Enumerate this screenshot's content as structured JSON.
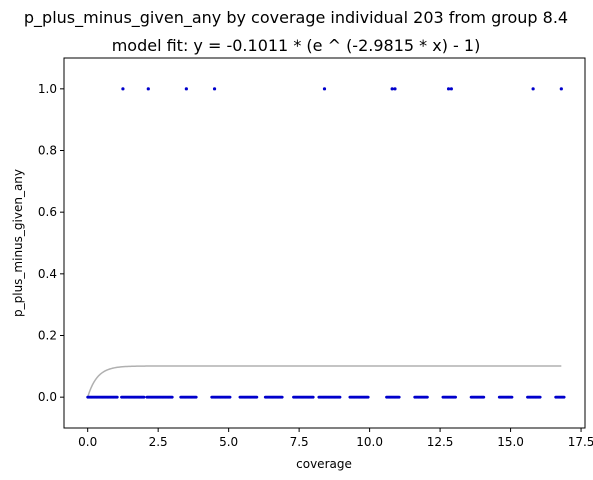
{
  "chart_data": {
    "type": "scatter",
    "title": "p_plus_minus_given_any by coverage individual 203 from group 8.4",
    "subtitle": "model fit: y = -0.1011 * (e ^ (-2.9815 * x) - 1)",
    "xlabel": "coverage",
    "ylabel": "p_plus_minus_given_any",
    "xlim": [
      -0.84,
      17.64
    ],
    "ylim": [
      -0.1,
      1.1
    ],
    "xticks": [
      0.0,
      2.5,
      5.0,
      7.5,
      10.0,
      12.5,
      15.0,
      17.5
    ],
    "xtick_labels": [
      "0.0",
      "2.5",
      "5.0",
      "7.5",
      "10.0",
      "12.5",
      "15.0",
      "17.5"
    ],
    "yticks": [
      0.0,
      0.2,
      0.4,
      0.6,
      0.8,
      1.0
    ],
    "ytick_labels": [
      "0.0",
      "0.2",
      "0.4",
      "0.6",
      "0.8",
      "1.0"
    ],
    "grid": false,
    "legend": "none",
    "point_color": "#0000cc",
    "fit_color": "#b0b0b0",
    "fit": {
      "a": 0.1011,
      "b": 2.9815,
      "x_range": [
        0,
        16.8
      ]
    },
    "points_y1": [
      1.25,
      2.15,
      3.5,
      4.5,
      8.4,
      10.8,
      10.9,
      12.8,
      12.9,
      15.8,
      16.8
    ],
    "points_y0_segments": [
      [
        0.0,
        1.05
      ],
      [
        1.2,
        2.0
      ],
      [
        2.1,
        3.0
      ],
      [
        3.3,
        3.85
      ],
      [
        4.4,
        5.05
      ],
      [
        5.4,
        6.0
      ],
      [
        6.3,
        6.9
      ],
      [
        7.3,
        8.0
      ],
      [
        8.2,
        8.95
      ],
      [
        9.3,
        9.95
      ],
      [
        10.6,
        11.05
      ],
      [
        11.6,
        12.05
      ],
      [
        12.6,
        13.05
      ],
      [
        13.6,
        14.05
      ],
      [
        14.6,
        15.05
      ],
      [
        15.6,
        16.05
      ],
      [
        16.6,
        16.9
      ]
    ]
  }
}
